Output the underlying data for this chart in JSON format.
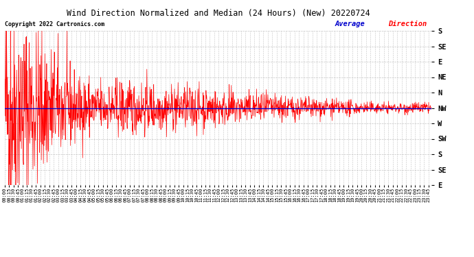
{
  "title": "Wind Direction Normalized and Median (24 Hours) (New) 20220724",
  "copyright_text": "Copyright 2022 Cartronics.com",
  "legend_text": "Average Direction",
  "background_color": "#ffffff",
  "plot_bg_color": "#ffffff",
  "grid_color": "#aaaaaa",
  "line_color": "#ff0000",
  "avg_line_color": "#0000cc",
  "title_color": "#000000",
  "copyright_color": "#000000",
  "legend_color_avg": "#0000cc",
  "legend_color_dir": "#ff0000",
  "ytick_labels": [
    "S",
    "SE",
    "E",
    "NE",
    "N",
    "NW",
    "W",
    "SW",
    "S",
    "SE",
    "E"
  ],
  "ytick_values": [
    540,
    495,
    450,
    405,
    360,
    315,
    270,
    225,
    180,
    135,
    90
  ],
  "avg_direction_value": 315,
  "y_min": 90,
  "y_max": 540,
  "total_minutes": 1435,
  "seed": 42,
  "fig_width": 6.9,
  "fig_height": 3.75,
  "dpi": 100
}
